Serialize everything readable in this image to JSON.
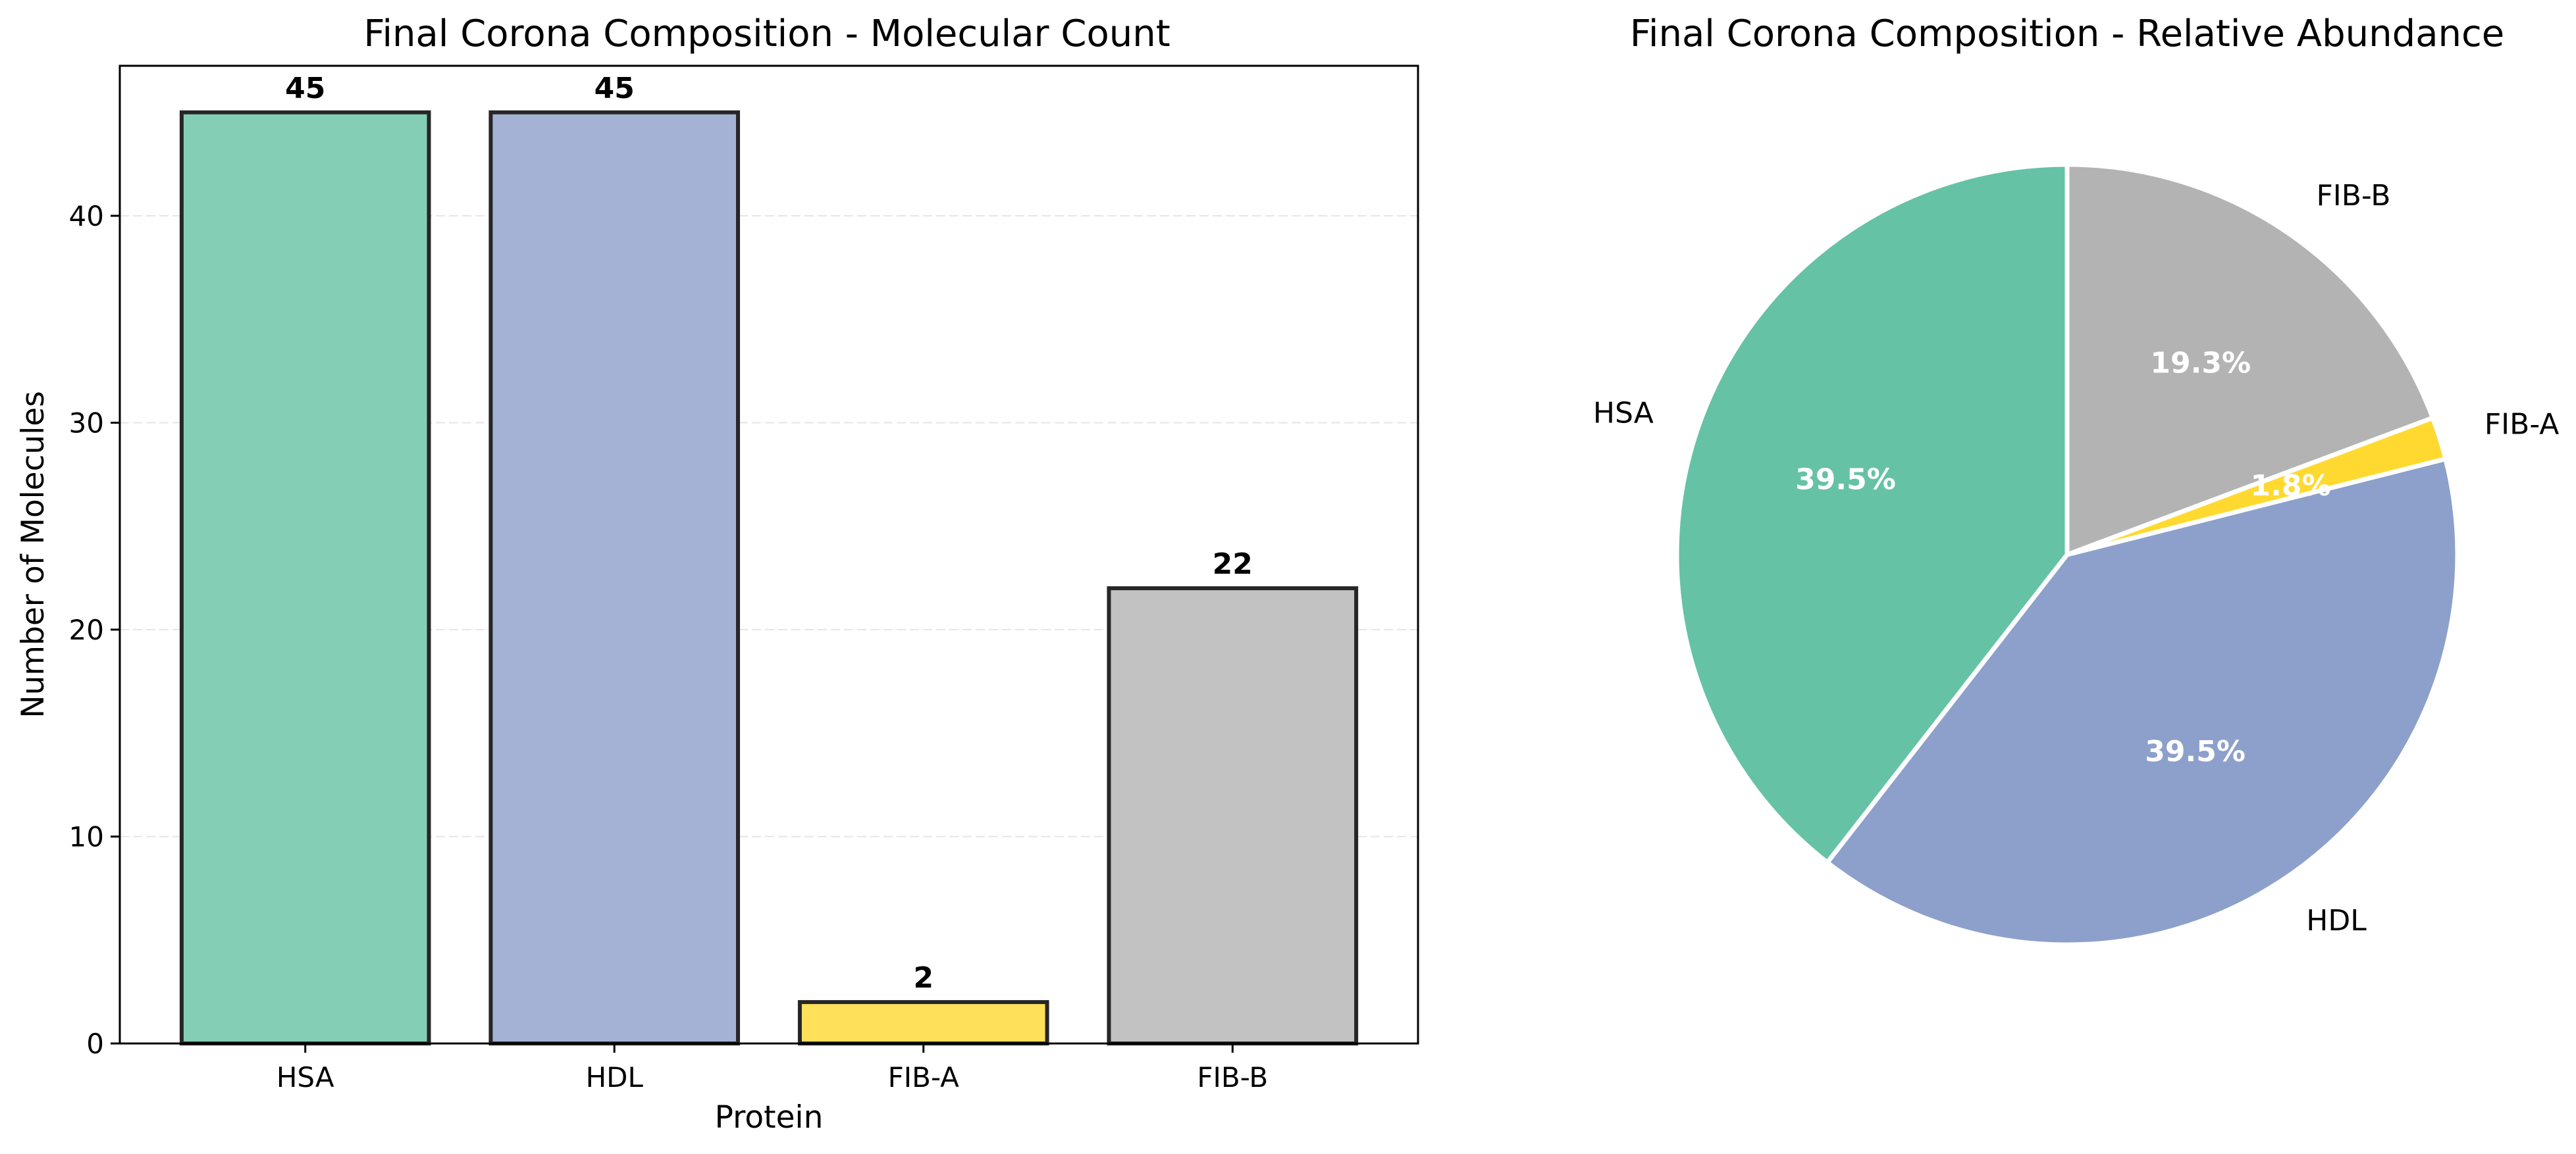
{
  "chart_data": [
    {
      "type": "bar",
      "title": "Final Corona Composition - Molecular Count",
      "xlabel": "Protein",
      "ylabel": "Number of Molecules",
      "categories": [
        "HSA",
        "HDL",
        "FIB-A",
        "FIB-B"
      ],
      "values": [
        45,
        45,
        2,
        22
      ],
      "data_labels": [
        "45",
        "45",
        "2",
        "22"
      ],
      "colors": [
        "#84CEB5",
        "#A4B2D5",
        "#FFE05A",
        "#C2C2C2"
      ],
      "edge_color": "#262626",
      "ylim": [
        0,
        47.25
      ],
      "yticks": [
        0,
        10,
        20,
        30,
        40
      ],
      "ytick_labels": [
        "0",
        "10",
        "20",
        "30",
        "40"
      ],
      "grid": "y-dashed"
    },
    {
      "type": "pie",
      "title": "Final Corona Composition - Relative Abundance",
      "labels": [
        "HSA",
        "HDL",
        "FIB-A",
        "FIB-B"
      ],
      "values": [
        45,
        45,
        2,
        22
      ],
      "percent_labels": [
        "39.5%",
        "39.5%",
        "1.8%",
        "19.3%"
      ],
      "colors": [
        "#66C2A5",
        "#8DA0CB",
        "#FFD92F",
        "#B3B3B3"
      ],
      "start_angle": 90,
      "direction": "counterclockwise"
    }
  ]
}
